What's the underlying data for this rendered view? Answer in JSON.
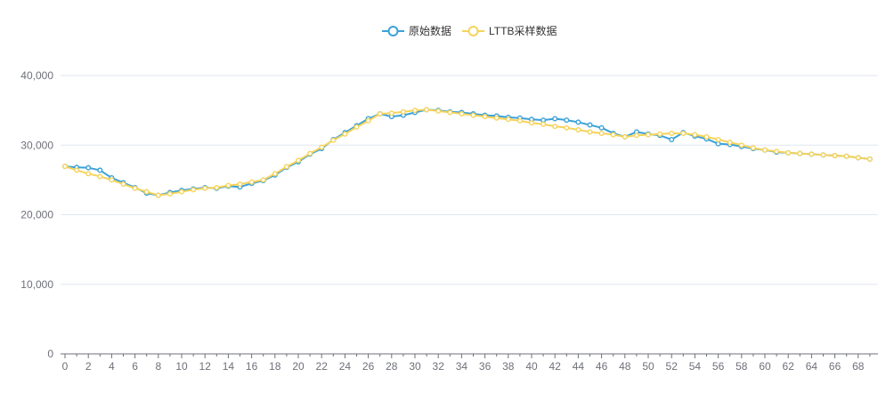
{
  "chart_data": {
    "type": "line",
    "title": "",
    "xlabel": "",
    "ylabel": "",
    "x": [
      0,
      1,
      2,
      3,
      4,
      5,
      6,
      7,
      8,
      9,
      10,
      11,
      12,
      13,
      14,
      15,
      16,
      17,
      18,
      19,
      20,
      21,
      22,
      23,
      24,
      25,
      26,
      27,
      28,
      29,
      30,
      31,
      32,
      33,
      34,
      35,
      36,
      37,
      38,
      39,
      40,
      41,
      42,
      43,
      44,
      45,
      46,
      47,
      48,
      49,
      50,
      51,
      52,
      53,
      54,
      55,
      56,
      57,
      58,
      59,
      60,
      61,
      62,
      63,
      64,
      65,
      66,
      67,
      68,
      69
    ],
    "x_ticks": [
      "0",
      "2",
      "4",
      "6",
      "8",
      "10",
      "12",
      "14",
      "16",
      "18",
      "20",
      "22",
      "24",
      "26",
      "28",
      "30",
      "32",
      "34",
      "36",
      "38",
      "40",
      "42",
      "44",
      "46",
      "48",
      "50",
      "52",
      "54",
      "56",
      "58",
      "60",
      "62",
      "64",
      "66",
      "68"
    ],
    "y_ticks": [
      "0",
      "10,000",
      "20,000",
      "30,000",
      "40,000"
    ],
    "ylim": [
      0,
      40000
    ],
    "xlim": [
      0,
      69
    ],
    "grid": true,
    "legend_position": "top-center",
    "series": [
      {
        "name": "原始数据",
        "color": "#3ba1d8",
        "values": [
          26950,
          26800,
          26750,
          26400,
          25300,
          24600,
          23900,
          23100,
          22800,
          23200,
          23500,
          23700,
          23900,
          23800,
          24100,
          24000,
          24500,
          24900,
          25700,
          26800,
          27600,
          28700,
          29500,
          30800,
          31800,
          32800,
          33800,
          34500,
          34100,
          34300,
          34700,
          35100,
          35000,
          34800,
          34700,
          34500,
          34300,
          34200,
          34000,
          33900,
          33700,
          33600,
          33800,
          33600,
          33300,
          32900,
          32500,
          31700,
          31200,
          31900,
          31600,
          31400,
          30800,
          31800,
          31300,
          30900,
          30200,
          30100,
          29800,
          29500,
          29300,
          29000,
          28900,
          28800,
          28700,
          28600,
          28500,
          28400,
          28200,
          28000
        ]
      },
      {
        "name": "LTTB采样数据",
        "color": "#f5d35a",
        "values": [
          26950,
          26400,
          25900,
          25500,
          25000,
          24400,
          23800,
          23300,
          22800,
          23000,
          23300,
          23600,
          23800,
          23900,
          24200,
          24400,
          24700,
          25000,
          25900,
          26900,
          27800,
          28800,
          29700,
          30700,
          31600,
          32600,
          33500,
          34500,
          34600,
          34800,
          35000,
          35100,
          34900,
          34700,
          34500,
          34300,
          34100,
          33900,
          33700,
          33500,
          33200,
          33000,
          32700,
          32500,
          32200,
          31900,
          31700,
          31500,
          31200,
          31400,
          31500,
          31600,
          31700,
          31700,
          31500,
          31200,
          30800,
          30400,
          30000,
          29600,
          29300,
          29100,
          28900,
          28800,
          28700,
          28600,
          28500,
          28400,
          28200,
          28000
        ]
      }
    ]
  }
}
